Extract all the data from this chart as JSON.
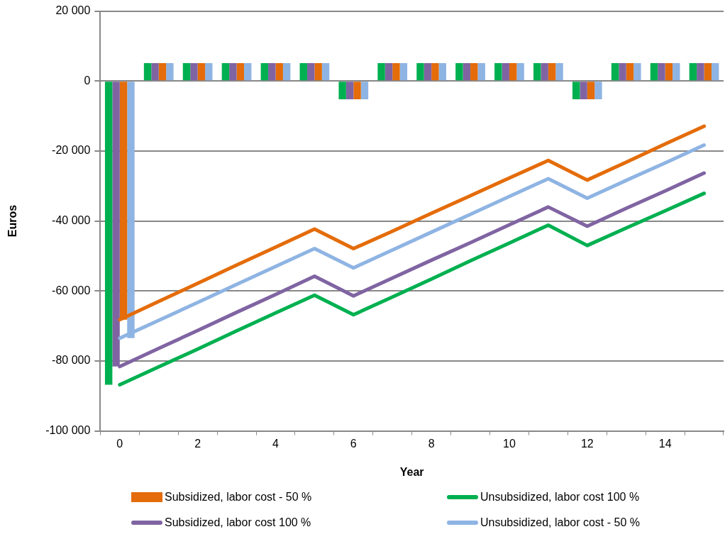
{
  "chart_data": {
    "type": "bar",
    "xlabel": "Year",
    "ylabel": "Euros",
    "categories": [
      "0",
      null,
      "2",
      null,
      "4",
      null,
      "6",
      null,
      "8",
      null,
      "10",
      null,
      "12",
      null,
      "14",
      null
    ],
    "series": [
      {
        "color": "#00b050",
        "values": [
          -86800,
          5100,
          5100,
          5100,
          5100,
          5100,
          -5200,
          5100,
          5100,
          5100,
          5100,
          5100,
          -5200,
          5100,
          5100,
          5100
        ]
      },
      {
        "color": "#8064a2",
        "values": [
          -81600,
          5100,
          5100,
          5100,
          5100,
          5100,
          -5200,
          5100,
          5100,
          5100,
          5100,
          5100,
          -5200,
          5100,
          5100,
          5100
        ]
      },
      {
        "name": "Subsidized, labor cost - 50 %",
        "color": "#e46c0a",
        "values": [
          -68200,
          5100,
          5100,
          5100,
          5100,
          5100,
          -5200,
          5100,
          5100,
          5100,
          5100,
          5100,
          -5200,
          5100,
          5100,
          5100
        ]
      },
      {
        "color": "#8eb4e3",
        "values": [
          -73500,
          5100,
          5100,
          5100,
          5100,
          5100,
          -5200,
          5100,
          5100,
          5100,
          5100,
          5100,
          -5200,
          5100,
          5100,
          5100
        ]
      },
      {
        "type": "line",
        "name": "Unsubsidized, labor cost 100 %",
        "color": "#00b050",
        "values": [
          -86800,
          -81700,
          -76600,
          -71400,
          -66300,
          -61200,
          -66800,
          -61700,
          -56600,
          -51400,
          -46300,
          -41200,
          -47000,
          -42000,
          -37100,
          -32100
        ]
      },
      {
        "type": "line",
        "name": "Subsidized, labor cost 100 %",
        "color": "#8064a2",
        "values": [
          -81600,
          -76400,
          -71300,
          -66100,
          -61000,
          -55800,
          -61400,
          -56300,
          -51200,
          -46200,
          -41100,
          -36000,
          -41500,
          -36400,
          -31400,
          -26300
        ]
      },
      {
        "type": "line",
        "color": "#e46c0a",
        "values": [
          -68200,
          -63000,
          -57800,
          -52600,
          -47500,
          -42300,
          -47900,
          -42900,
          -37800,
          -32800,
          -27700,
          -22700,
          -28300,
          -23200,
          -18000,
          -12900
        ]
      },
      {
        "type": "line",
        "name": "Unsubsidized, labor cost - 50 %",
        "color": "#8eb4e3",
        "values": [
          -73500,
          -68400,
          -63300,
          -58100,
          -53000,
          -47900,
          -53400,
          -48300,
          -43200,
          -38100,
          -33000,
          -27900,
          -33500,
          -28400,
          -23400,
          -18300
        ]
      }
    ],
    "ylim": [
      -100000,
      20000
    ],
    "yticks": [
      {
        "value": -100000,
        "label": "-100 000"
      },
      {
        "value": -80000,
        "label": "-80 000"
      },
      {
        "value": -60000,
        "label": "-60 000"
      },
      {
        "value": -40000,
        "label": "-40 000"
      },
      {
        "value": -20000,
        "label": "-20 000"
      },
      0,
      {
        "value": 20000,
        "label": "20 000"
      }
    ],
    "grid": "y",
    "legend": "bottom",
    "marker": "none",
    "line_style": "solid"
  }
}
